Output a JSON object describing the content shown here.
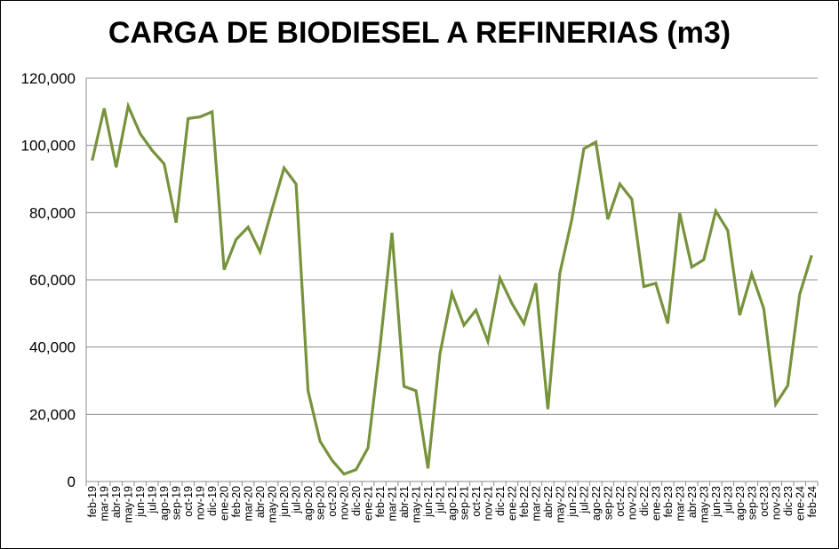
{
  "chart_data": {
    "type": "line",
    "title": "CARGA DE BIODIESEL A REFINERIAS (m3)",
    "xlabel": "",
    "ylabel": "",
    "ylim": [
      0,
      120000
    ],
    "yticks": [
      "0",
      "20,000",
      "40,000",
      "60,000",
      "80,000",
      "100,000",
      "120,000"
    ],
    "grid": true,
    "legend": "none",
    "colors": {
      "line": "#77933C",
      "grid": "#8c8c8c",
      "axis": "#8c8c8c"
    },
    "categories": [
      "feb-19",
      "mar-19",
      "abr-19",
      "may-19",
      "jun-19",
      "jul-19",
      "ago-19",
      "sep-19",
      "oct-19",
      "nov-19",
      "dic-19",
      "ene-20",
      "feb-20",
      "mar-20",
      "abr-20",
      "may-20",
      "jun-20",
      "jul-20",
      "ago-20",
      "sep-20",
      "oct-20",
      "nov-20",
      "dic-20",
      "ene-21",
      "feb-21",
      "mar-21",
      "abr-21",
      "may-21",
      "jun-21",
      "jul-21",
      "ago-21",
      "sep-21",
      "oct-21",
      "nov-21",
      "dic-21",
      "ene-22",
      "feb-22",
      "mar-22",
      "abr-22",
      "may-22",
      "jun-22",
      "jul-22",
      "ago-22",
      "sep-22",
      "oct-22",
      "nov-22",
      "dic-22",
      "ene-23",
      "feb-23",
      "mar-23",
      "abr-23",
      "may-23",
      "jun-23",
      "jul-23",
      "ago-23",
      "sep-23",
      "oct-23",
      "nov-23",
      "dic-23",
      "ene-24",
      "feb-24"
    ],
    "series": [
      {
        "values": [
          95500,
          111000,
          93500,
          111700,
          103500,
          98500,
          94500,
          77000,
          108000,
          108500,
          110000,
          63000,
          72000,
          75700,
          68300,
          81000,
          93300,
          88500,
          27000,
          12000,
          6300,
          2200,
          3500,
          10000,
          40000,
          74000,
          28300,
          27000,
          3900,
          38000,
          56000,
          46500,
          51000,
          41700,
          60500,
          53000,
          47000,
          59000,
          21500,
          62000,
          78000,
          99000,
          101000,
          78000,
          88500,
          84000,
          58000,
          59000,
          47000,
          79800,
          63800,
          66000,
          80500,
          74700,
          49500,
          61800,
          51500,
          23000,
          28500,
          55700,
          67300
        ]
      }
    ]
  }
}
